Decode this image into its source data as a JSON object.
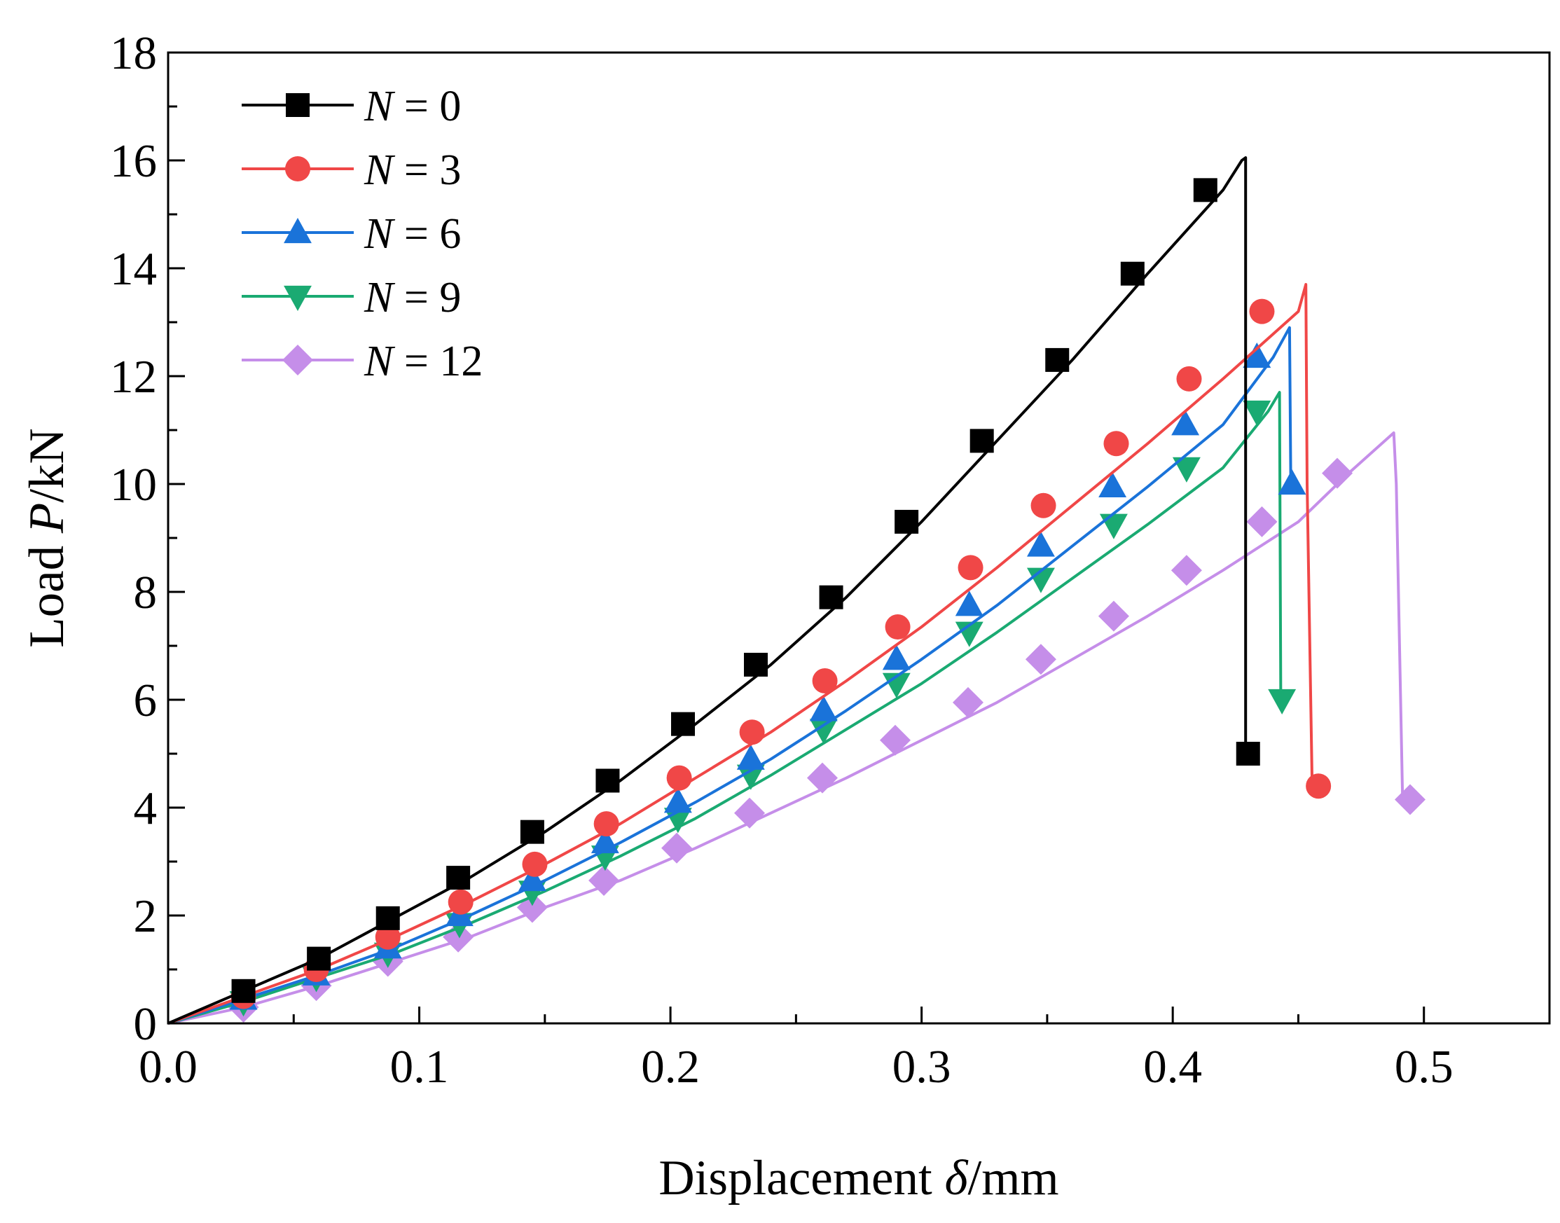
{
  "chart_data": {
    "type": "line",
    "title": "",
    "xlabel": {
      "prefix": "Displacement ",
      "var": "δ",
      "suffix": "/mm"
    },
    "ylabel": {
      "prefix": "Load ",
      "var": "P",
      "suffix": "/kN"
    },
    "xlim": [
      0,
      0.55
    ],
    "ylim": [
      0,
      18
    ],
    "x_major_ticks": [
      0.0,
      0.1,
      0.2,
      0.3,
      0.4,
      0.5
    ],
    "x_tick_labels": [
      "0.0",
      "0.1",
      "0.2",
      "0.3",
      "0.4",
      "0.5"
    ],
    "y_major_ticks": [
      0,
      2,
      4,
      6,
      8,
      10,
      12,
      14,
      16,
      18
    ],
    "y_tick_labels": [
      "0",
      "2",
      "4",
      "6",
      "8",
      "10",
      "12",
      "14",
      "16",
      "18"
    ],
    "grid": false,
    "legend_position": "top-left",
    "series": [
      {
        "name": "N = 0",
        "label_var": "N",
        "label_rest": " = 0",
        "color": "#000000",
        "marker": "square",
        "line": [
          [
            0,
            0
          ],
          [
            0.03,
            0.6
          ],
          [
            0.06,
            1.2
          ],
          [
            0.09,
            1.95
          ],
          [
            0.12,
            2.7
          ],
          [
            0.15,
            3.55
          ],
          [
            0.18,
            4.5
          ],
          [
            0.21,
            5.55
          ],
          [
            0.24,
            6.65
          ],
          [
            0.27,
            7.9
          ],
          [
            0.3,
            9.3
          ],
          [
            0.33,
            10.8
          ],
          [
            0.36,
            12.3
          ],
          [
            0.39,
            13.9
          ],
          [
            0.42,
            15.45
          ],
          [
            0.4275,
            16.0
          ],
          [
            0.429,
            16.05
          ],
          [
            0.429,
            12
          ],
          [
            0.429,
            5.0
          ]
        ],
        "markers": [
          [
            0.03,
            0.6
          ],
          [
            0.06,
            1.2
          ],
          [
            0.0875,
            1.95
          ],
          [
            0.1155,
            2.7
          ],
          [
            0.145,
            3.55
          ],
          [
            0.175,
            4.5
          ],
          [
            0.205,
            5.55
          ],
          [
            0.234,
            6.65
          ],
          [
            0.264,
            7.9
          ],
          [
            0.294,
            9.3
          ],
          [
            0.324,
            10.8
          ],
          [
            0.354,
            12.3
          ],
          [
            0.384,
            13.9
          ],
          [
            0.413,
            15.45
          ],
          [
            0.43,
            5.0
          ]
        ]
      },
      {
        "name": "N = 3",
        "label_var": "N",
        "label_rest": " = 3",
        "color": "#f04747",
        "marker": "circle",
        "line": [
          [
            0,
            0
          ],
          [
            0.03,
            0.5
          ],
          [
            0.06,
            1.0
          ],
          [
            0.09,
            1.6
          ],
          [
            0.12,
            2.25
          ],
          [
            0.15,
            2.95
          ],
          [
            0.18,
            3.7
          ],
          [
            0.21,
            4.55
          ],
          [
            0.24,
            5.4
          ],
          [
            0.27,
            6.35
          ],
          [
            0.3,
            7.35
          ],
          [
            0.33,
            8.45
          ],
          [
            0.36,
            9.6
          ],
          [
            0.39,
            10.75
          ],
          [
            0.42,
            11.95
          ],
          [
            0.45,
            13.2
          ],
          [
            0.453,
            13.7
          ],
          [
            0.4535,
            10
          ],
          [
            0.4555,
            4.4
          ]
        ],
        "markers": [
          [
            0.03,
            0.5
          ],
          [
            0.059,
            1.0
          ],
          [
            0.0875,
            1.6
          ],
          [
            0.1165,
            2.25
          ],
          [
            0.146,
            2.95
          ],
          [
            0.1745,
            3.7
          ],
          [
            0.2035,
            4.55
          ],
          [
            0.2325,
            5.4
          ],
          [
            0.2615,
            6.35
          ],
          [
            0.2905,
            7.35
          ],
          [
            0.3195,
            8.45
          ],
          [
            0.3485,
            9.6
          ],
          [
            0.3775,
            10.75
          ],
          [
            0.4065,
            11.95
          ],
          [
            0.4355,
            13.2
          ],
          [
            0.458,
            4.4
          ]
        ]
      },
      {
        "name": "N = 6",
        "label_var": "N",
        "label_rest": " = 6",
        "color": "#1a73d9",
        "marker": "triangle-up",
        "line": [
          [
            0,
            0
          ],
          [
            0.03,
            0.45
          ],
          [
            0.06,
            0.9
          ],
          [
            0.09,
            1.4
          ],
          [
            0.12,
            2.0
          ],
          [
            0.15,
            2.65
          ],
          [
            0.18,
            3.35
          ],
          [
            0.21,
            4.1
          ],
          [
            0.24,
            4.9
          ],
          [
            0.27,
            5.8
          ],
          [
            0.3,
            6.75
          ],
          [
            0.33,
            7.75
          ],
          [
            0.36,
            8.85
          ],
          [
            0.39,
            9.95
          ],
          [
            0.42,
            11.1
          ],
          [
            0.44,
            12.35
          ],
          [
            0.4465,
            12.9
          ],
          [
            0.447,
            10.0
          ]
        ],
        "markers": [
          [
            0.03,
            0.45
          ],
          [
            0.059,
            0.9
          ],
          [
            0.0875,
            1.4
          ],
          [
            0.116,
            2.0
          ],
          [
            0.145,
            2.65
          ],
          [
            0.174,
            3.35
          ],
          [
            0.203,
            4.1
          ],
          [
            0.232,
            4.9
          ],
          [
            0.261,
            5.8
          ],
          [
            0.29,
            6.75
          ],
          [
            0.319,
            7.75
          ],
          [
            0.3475,
            8.85
          ],
          [
            0.376,
            9.95
          ],
          [
            0.405,
            11.1
          ],
          [
            0.4335,
            12.35
          ],
          [
            0.4475,
            10.0
          ]
        ]
      },
      {
        "name": "N = 9",
        "label_var": "N",
        "label_rest": " = 9",
        "color": "#1aaa72",
        "marker": "triangle-down",
        "line": [
          [
            0,
            0
          ],
          [
            0.03,
            0.4
          ],
          [
            0.06,
            0.85
          ],
          [
            0.09,
            1.3
          ],
          [
            0.12,
            1.85
          ],
          [
            0.15,
            2.45
          ],
          [
            0.18,
            3.1
          ],
          [
            0.21,
            3.8
          ],
          [
            0.24,
            4.6
          ],
          [
            0.27,
            5.45
          ],
          [
            0.3,
            6.3
          ],
          [
            0.33,
            7.25
          ],
          [
            0.36,
            8.25
          ],
          [
            0.39,
            9.25
          ],
          [
            0.42,
            10.3
          ],
          [
            0.438,
            11.35
          ],
          [
            0.4425,
            11.7
          ],
          [
            0.443,
            6.0
          ]
        ],
        "markers": [
          [
            0.03,
            0.4
          ],
          [
            0.059,
            0.85
          ],
          [
            0.0875,
            1.3
          ],
          [
            0.116,
            1.85
          ],
          [
            0.145,
            2.45
          ],
          [
            0.174,
            3.1
          ],
          [
            0.203,
            3.8
          ],
          [
            0.232,
            4.6
          ],
          [
            0.261,
            5.45
          ],
          [
            0.29,
            6.3
          ],
          [
            0.319,
            7.25
          ],
          [
            0.3475,
            8.25
          ],
          [
            0.3765,
            9.25
          ],
          [
            0.4055,
            10.3
          ],
          [
            0.4335,
            11.35
          ],
          [
            0.4435,
            6.0
          ]
        ]
      },
      {
        "name": "N = 12",
        "label_var": "N",
        "label_rest": " = 12",
        "color": "#c58ee9",
        "marker": "diamond",
        "line": [
          [
            0,
            0
          ],
          [
            0.03,
            0.3
          ],
          [
            0.06,
            0.7
          ],
          [
            0.09,
            1.15
          ],
          [
            0.12,
            1.6
          ],
          [
            0.15,
            2.15
          ],
          [
            0.18,
            2.65
          ],
          [
            0.21,
            3.25
          ],
          [
            0.24,
            3.9
          ],
          [
            0.27,
            4.55
          ],
          [
            0.3,
            5.25
          ],
          [
            0.33,
            5.95
          ],
          [
            0.36,
            6.75
          ],
          [
            0.39,
            7.55
          ],
          [
            0.42,
            8.4
          ],
          [
            0.45,
            9.3
          ],
          [
            0.47,
            10.2
          ],
          [
            0.488,
            10.95
          ],
          [
            0.489,
            10.0
          ],
          [
            0.4915,
            4.15
          ]
        ],
        "markers": [
          [
            0.03,
            0.3
          ],
          [
            0.059,
            0.7
          ],
          [
            0.0875,
            1.15
          ],
          [
            0.1155,
            1.6
          ],
          [
            0.145,
            2.15
          ],
          [
            0.1735,
            2.65
          ],
          [
            0.2025,
            3.25
          ],
          [
            0.2315,
            3.9
          ],
          [
            0.2605,
            4.55
          ],
          [
            0.2895,
            5.25
          ],
          [
            0.3185,
            5.95
          ],
          [
            0.3475,
            6.75
          ],
          [
            0.3765,
            7.55
          ],
          [
            0.4055,
            8.4
          ],
          [
            0.4355,
            9.3
          ],
          [
            0.4655,
            10.2
          ],
          [
            0.4945,
            4.15
          ]
        ]
      }
    ]
  }
}
